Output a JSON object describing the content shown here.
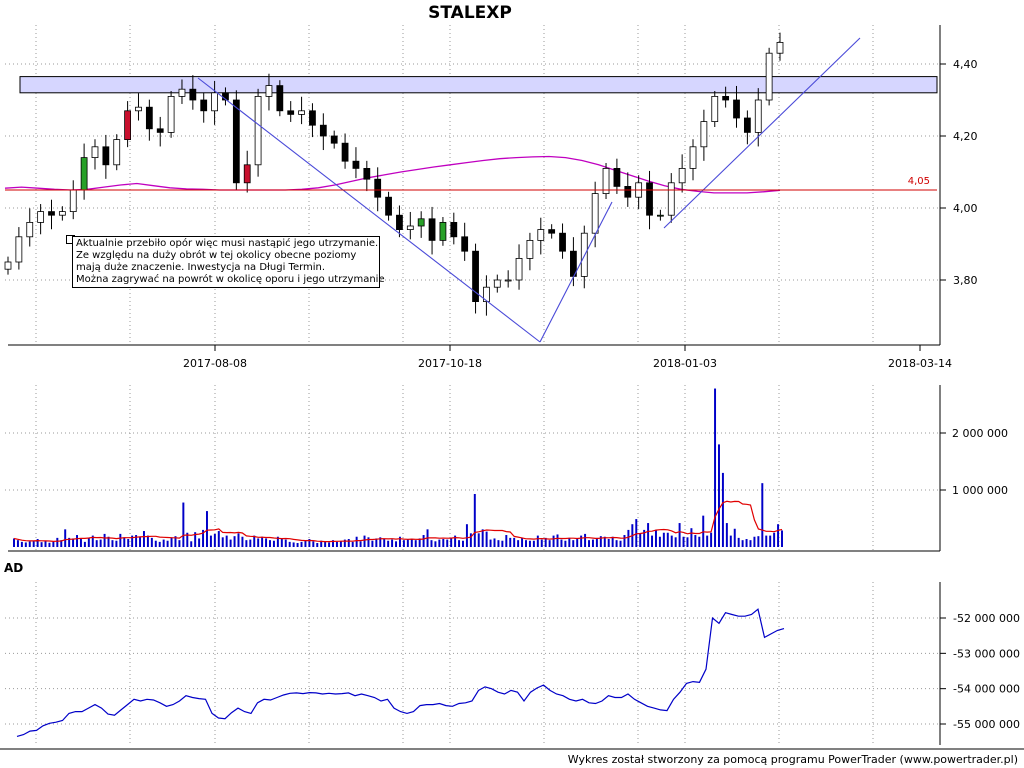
{
  "chart_data": [
    {
      "type": "candlestick",
      "title": "STALEXP",
      "x_ticks": [
        "2017-08-08",
        "2017-10-18",
        "2018-01-03",
        "2018-03-14"
      ],
      "y_ticks": [
        "4,40",
        "4,20",
        "4,00",
        "3,80"
      ],
      "ylim": [
        3.63,
        4.53
      ],
      "grid": true,
      "reference_line": {
        "value": 4.05,
        "label": "4,05",
        "color": "#d00000"
      },
      "resistance_zone": [
        4.32,
        4.365
      ],
      "moving_average": [
        4.055,
        4.058,
        4.055,
        4.052,
        4.05,
        4.052,
        4.058,
        4.064,
        4.068,
        4.062,
        4.056,
        4.053,
        4.052,
        4.05,
        4.05,
        4.05,
        4.05,
        4.05,
        4.052,
        4.056,
        4.064,
        4.074,
        4.084,
        4.092,
        4.1,
        4.107,
        4.114,
        4.12,
        4.126,
        4.132,
        4.137,
        4.14,
        4.142,
        4.143,
        4.14,
        4.132,
        4.12,
        4.105,
        4.09,
        4.075,
        4.062,
        4.052,
        4.046,
        4.042,
        4.042,
        4.042,
        4.045,
        4.049
      ],
      "close_values": [
        3.85,
        3.92,
        3.96,
        3.99,
        3.98,
        3.99,
        4.05,
        4.14,
        4.17,
        4.12,
        4.19,
        4.27,
        4.28,
        4.22,
        4.21,
        4.31,
        4.33,
        4.3,
        4.27,
        4.32,
        4.3,
        4.07,
        4.12,
        4.31,
        4.34,
        4.27,
        4.26,
        4.27,
        4.23,
        4.2,
        4.18,
        4.13,
        4.11,
        4.08,
        4.03,
        3.98,
        3.94,
        3.95,
        3.97,
        3.91,
        3.96,
        3.92,
        3.88,
        3.74,
        3.78,
        3.8,
        3.8,
        3.86,
        3.91,
        3.94,
        3.93,
        3.88,
        3.81,
        3.93,
        4.04,
        4.11,
        4.06,
        4.03,
        4.07,
        3.98,
        3.98,
        4.07,
        4.11,
        4.17,
        4.24,
        4.31,
        4.3,
        4.25,
        4.21,
        4.3,
        4.43,
        4.46
      ],
      "annotation": [
        "Aktualnie przebiło opór więc musi nastąpić jego utrzymanie.",
        "Ze względu na duży obrót w tej okolicy obecne poziomy",
        "mają duże znaczenie. Inwestycja na Długi Termin.",
        "Można zagrywać na powrót w okolicę oporu i jego utrzymanie"
      ]
    },
    {
      "type": "bar",
      "name": "volume",
      "y_ticks": [
        "2 000 000",
        "1 000 000"
      ],
      "ylim": [
        0,
        2900000
      ],
      "bar_color": "#0000c8",
      "ma_color": "#e00000",
      "values": [
        150000,
        120000,
        90000,
        80000,
        95000,
        110000,
        140000,
        85000,
        100000,
        75000,
        90000,
        160000,
        120000,
        310000,
        160000,
        150000,
        210000,
        140000,
        90000,
        150000,
        200000,
        120000,
        130000,
        230000,
        180000,
        120000,
        110000,
        230000,
        170000,
        140000,
        200000,
        210000,
        180000,
        280000,
        200000,
        160000,
        110000,
        90000,
        130000,
        110000,
        170000,
        190000,
        120000,
        780000,
        250000,
        100000,
        260000,
        150000,
        300000,
        630000,
        200000,
        230000,
        280000,
        170000,
        200000,
        130000,
        190000,
        240000,
        180000,
        120000,
        130000,
        200000,
        150000,
        180000,
        150000,
        120000,
        110000,
        180000,
        140000,
        130000,
        90000,
        80000,
        70000,
        90000,
        110000,
        140000,
        100000,
        70000,
        110000,
        90000,
        80000,
        120000,
        90000,
        100000,
        130000,
        140000,
        90000,
        180000,
        100000,
        200000,
        170000,
        110000,
        150000,
        170000,
        140000,
        110000,
        130000,
        100000,
        180000,
        120000,
        140000,
        140000,
        120000,
        150000,
        210000,
        310000,
        120000,
        100000,
        130000,
        140000,
        130000,
        160000,
        200000,
        120000,
        110000,
        400000,
        240000,
        930000,
        240000,
        310000,
        270000,
        130000,
        150000,
        120000,
        110000,
        210000,
        160000,
        160000,
        120000,
        160000,
        120000,
        110000,
        110000,
        200000,
        130000,
        160000,
        120000,
        200000,
        220000,
        130000,
        110000,
        160000,
        120000,
        140000,
        200000,
        230000,
        120000,
        130000,
        160000,
        190000,
        180000,
        140000,
        180000,
        120000,
        110000,
        210000,
        300000,
        400000,
        490000,
        230000,
        300000,
        420000,
        200000,
        300000,
        180000,
        250000,
        250000,
        200000,
        170000,
        420000,
        180000,
        170000,
        330000,
        210000,
        180000,
        550000,
        200000,
        250000,
        2780000,
        1800000,
        1300000,
        420000,
        200000,
        320000,
        160000,
        120000,
        140000,
        120000,
        180000,
        190000,
        1120000,
        200000,
        200000,
        250000,
        400000,
        290000
      ]
    },
    {
      "type": "line",
      "name": "AD",
      "y_ticks": [
        "-52 000 000",
        "-53 000 000",
        "-54 000 000",
        "-55 000 000"
      ],
      "ylim": [
        -55400000,
        -51500000
      ],
      "color": "#0000c8",
      "values": [
        -55350000,
        -55300000,
        -55200000,
        -55180000,
        -55050000,
        -54980000,
        -54950000,
        -54900000,
        -54700000,
        -54650000,
        -54650000,
        -54550000,
        -54450000,
        -54550000,
        -54720000,
        -54750000,
        -54600000,
        -54450000,
        -54300000,
        -54350000,
        -54300000,
        -54320000,
        -54400000,
        -54500000,
        -54450000,
        -54350000,
        -54200000,
        -54250000,
        -54280000,
        -54300000,
        -54700000,
        -54830000,
        -54850000,
        -54680000,
        -54550000,
        -54650000,
        -54700000,
        -54400000,
        -54300000,
        -54320000,
        -54250000,
        -54180000,
        -54130000,
        -54120000,
        -54140000,
        -54110000,
        -54120000,
        -54150000,
        -54130000,
        -54150000,
        -54140000,
        -54120000,
        -54200000,
        -54150000,
        -54200000,
        -54250000,
        -54350000,
        -54300000,
        -54550000,
        -54650000,
        -54700000,
        -54650000,
        -54480000,
        -54450000,
        -54450000,
        -54420000,
        -54480000,
        -54500000,
        -54420000,
        -54400000,
        -54350000,
        -54050000,
        -53950000,
        -54000000,
        -54100000,
        -54150000,
        -54050000,
        -54100000,
        -54350000,
        -54100000,
        -53980000,
        -53900000,
        -54050000,
        -54150000,
        -54200000,
        -54300000,
        -54350000,
        -54300000,
        -54400000,
        -54420000,
        -54350000,
        -54200000,
        -54250000,
        -54250000,
        -54150000,
        -54300000,
        -54400000,
        -54500000,
        -54550000,
        -54600000,
        -54620000,
        -54300000,
        -54100000,
        -53850000,
        -53800000,
        -53820000,
        -53450000,
        -52000000,
        -52150000,
        -51850000,
        -51900000,
        -51950000,
        -51950000,
        -51900000,
        -51750000,
        -52550000,
        -52450000,
        -52350000,
        -52300000
      ]
    }
  ],
  "footer": "Wykres został stworzony za pomocą programu PowerTrader (www.powertrader.pl)"
}
